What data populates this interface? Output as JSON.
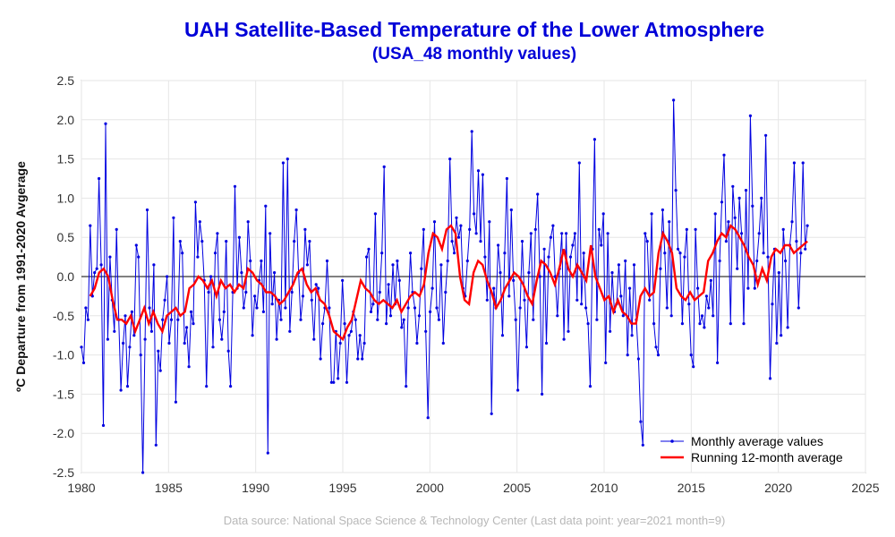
{
  "chart_data": {
    "type": "line",
    "title": "UAH Satellite-Based Temperature of the Lower Atmosphere",
    "subtitle": "(USA_48 monthly values)",
    "ylabel": "ºC Departure from 1991-2020 Avgerage",
    "xlabel": "",
    "xlim": [
      1980,
      2025
    ],
    "ylim": [
      -2.5,
      2.5
    ],
    "x_ticks": [
      "1980",
      "1985",
      "1990",
      "1995",
      "2000",
      "2005",
      "2010",
      "2015",
      "2020",
      "2025"
    ],
    "y_ticks": [
      "2.5",
      "2.0",
      "1.5",
      "1.0",
      "0.5",
      "0.0",
      "-0.5",
      "-1.0",
      "-1.5",
      "-2.0",
      "-2.5"
    ],
    "grid": true,
    "legend_position": "bottom-right",
    "colors": {
      "monthly": "#0000e0",
      "running": "#ff0000"
    },
    "series": [
      {
        "name": "Monthly average values",
        "start_year": 1980,
        "values": [
          -0.9,
          -1.1,
          -0.4,
          -0.55,
          0.65,
          -0.25,
          0.05,
          0.1,
          1.25,
          0.15,
          -1.9,
          1.95,
          -0.8,
          0.25,
          -0.3,
          -0.7,
          0.6,
          -0.55,
          -1.45,
          -0.85,
          -0.5,
          -1.4,
          -0.9,
          -0.45,
          -0.75,
          0.4,
          0.25,
          -1.0,
          -2.55,
          -0.8,
          0.85,
          -0.4,
          -0.7,
          0.15,
          -2.15,
          -0.95,
          -1.2,
          -0.55,
          -0.3,
          0.0,
          -0.85,
          -0.55,
          0.75,
          -1.6,
          -0.55,
          0.45,
          0.3,
          -0.85,
          -0.65,
          -1.15,
          -0.45,
          -0.6,
          0.95,
          0.25,
          0.7,
          0.45,
          -0.05,
          -1.4,
          -0.2,
          0.0,
          -0.9,
          0.3,
          0.55,
          -0.55,
          -0.8,
          -0.45,
          0.45,
          -0.95,
          -1.4,
          -0.2,
          1.15,
          -0.15,
          0.5,
          0.05,
          -0.4,
          -0.2,
          0.7,
          0.2,
          -0.75,
          -0.25,
          -0.4,
          -0.05,
          0.2,
          -0.45,
          0.9,
          -2.25,
          0.55,
          -0.35,
          0.05,
          -0.8,
          -0.3,
          -0.55,
          1.45,
          -0.4,
          1.5,
          -0.7,
          -0.2,
          0.45,
          0.85,
          0.05,
          -0.55,
          -0.25,
          0.6,
          0.15,
          0.45,
          -0.3,
          -0.8,
          -0.1,
          -0.15,
          -1.05,
          -0.6,
          -0.4,
          0.2,
          -0.4,
          -1.35,
          -1.35,
          -0.7,
          -1.3,
          -0.85,
          -0.05,
          -0.6,
          -1.35,
          -0.75,
          -0.7,
          -0.45,
          -0.55,
          -1.05,
          -0.75,
          -1.05,
          -0.85,
          0.25,
          0.35,
          -0.45,
          -0.35,
          0.8,
          -0.55,
          -0.2,
          0.3,
          1.4,
          -0.6,
          -0.1,
          -0.5,
          0.15,
          -0.35,
          0.2,
          -0.05,
          -0.65,
          -0.55,
          -1.4,
          -0.4,
          0.3,
          -0.2,
          -0.4,
          -0.85,
          -0.5,
          0.1,
          0.6,
          -0.7,
          -1.8,
          -0.45,
          -0.15,
          0.7,
          -0.4,
          -0.55,
          0.15,
          -0.85,
          -0.2,
          0.2,
          1.5,
          0.45,
          0.3,
          0.75,
          0.5,
          0.65,
          -0.15,
          -0.25,
          0.2,
          0.6,
          1.85,
          0.8,
          0.55,
          1.35,
          0.45,
          1.3,
          0.25,
          -0.3,
          0.7,
          -1.75,
          -0.15,
          -0.4,
          0.4,
          0.05,
          -0.75,
          0.3,
          1.25,
          -0.25,
          0.85,
          -0.05,
          -0.55,
          -1.45,
          -0.4,
          0.45,
          -0.3,
          -0.9,
          0.05,
          0.55,
          -0.55,
          0.6,
          1.05,
          0.0,
          -1.5,
          0.35,
          -0.85,
          0.25,
          0.5,
          0.65,
          0.0,
          -0.5,
          0.1,
          0.55,
          -0.8,
          0.55,
          -0.7,
          0.25,
          0.4,
          0.55,
          -0.3,
          1.45,
          -0.35,
          0.3,
          -0.4,
          -0.6,
          -1.4,
          0.35,
          1.75,
          -0.55,
          0.6,
          0.4,
          0.8,
          -1.1,
          0.55,
          -0.7,
          0.05,
          -0.45,
          -0.35,
          0.15,
          -0.25,
          -0.5,
          0.2,
          -1.0,
          -0.15,
          -0.75,
          0.15,
          -0.55,
          -1.05,
          -1.85,
          -2.15,
          0.55,
          0.45,
          -0.3,
          0.8,
          -0.6,
          -0.9,
          -1.0,
          0.1,
          0.85,
          0.3,
          -0.4,
          0.7,
          -0.5,
          2.25,
          1.1,
          0.35,
          0.3,
          -0.6,
          0.25,
          0.6,
          -0.35,
          -1.0,
          -1.15,
          0.6,
          -0.15,
          -0.6,
          -0.5,
          -0.65,
          -0.25,
          -0.4,
          -0.05,
          -0.5,
          0.8,
          -1.1,
          0.2,
          0.95,
          1.55,
          0.45,
          0.7,
          -0.6,
          1.15,
          0.75,
          0.1,
          1.0,
          0.55,
          -0.6,
          1.1,
          -0.15,
          2.05,
          0.9,
          -0.15,
          0.2,
          0.55,
          1.0,
          0.3,
          1.8,
          0.25,
          -1.3,
          -0.35,
          0.35,
          -0.85,
          0.05,
          -0.75,
          0.6,
          0.2,
          -0.65,
          0.4,
          0.7,
          1.45,
          0.45,
          -0.4,
          0.3,
          1.45,
          0.35,
          0.65
        ]
      },
      {
        "name": "Running 12-month average",
        "start_year": 1980.5,
        "values": [
          -0.25,
          -0.15,
          0.05,
          0.1,
          0.0,
          -0.3,
          -0.55,
          -0.55,
          -0.6,
          -0.5,
          -0.7,
          -0.55,
          -0.4,
          -0.6,
          -0.45,
          -0.6,
          -0.7,
          -0.5,
          -0.45,
          -0.4,
          -0.5,
          -0.45,
          -0.15,
          -0.1,
          0.0,
          -0.05,
          -0.15,
          -0.05,
          -0.25,
          -0.05,
          -0.15,
          -0.1,
          -0.2,
          -0.1,
          -0.15,
          0.1,
          0.05,
          -0.05,
          -0.1,
          -0.2,
          -0.2,
          -0.25,
          -0.35,
          -0.3,
          -0.2,
          -0.1,
          0.05,
          0.1,
          -0.1,
          -0.2,
          -0.15,
          -0.3,
          -0.35,
          -0.5,
          -0.7,
          -0.75,
          -0.8,
          -0.65,
          -0.55,
          -0.3,
          -0.05,
          -0.15,
          -0.2,
          -0.3,
          -0.35,
          -0.3,
          -0.35,
          -0.4,
          -0.3,
          -0.45,
          -0.35,
          -0.25,
          -0.2,
          -0.25,
          -0.1,
          0.3,
          0.55,
          0.5,
          0.35,
          0.6,
          0.65,
          0.55,
          0.0,
          -0.3,
          -0.35,
          0.05,
          0.2,
          0.15,
          -0.05,
          -0.2,
          -0.4,
          -0.3,
          -0.15,
          -0.05,
          0.05,
          0.0,
          -0.1,
          -0.25,
          -0.35,
          -0.05,
          0.2,
          0.15,
          0.05,
          -0.1,
          0.1,
          0.35,
          0.1,
          0.0,
          0.15,
          0.05,
          -0.05,
          0.4,
          0.0,
          -0.15,
          -0.3,
          -0.25,
          -0.45,
          -0.3,
          -0.45,
          -0.5,
          -0.6,
          -0.6,
          -0.25,
          -0.15,
          -0.25,
          -0.2,
          0.3,
          0.55,
          0.45,
          0.3,
          -0.15,
          -0.25,
          -0.3,
          -0.2,
          -0.3,
          -0.25,
          -0.2,
          0.2,
          0.3,
          0.45,
          0.55,
          0.5,
          0.65,
          0.6,
          0.5,
          0.4,
          0.25,
          0.15,
          -0.1,
          0.1,
          -0.05,
          0.25,
          0.35,
          0.3,
          0.4,
          0.4,
          0.3,
          0.35,
          0.4,
          0.45
        ]
      }
    ]
  }
}
